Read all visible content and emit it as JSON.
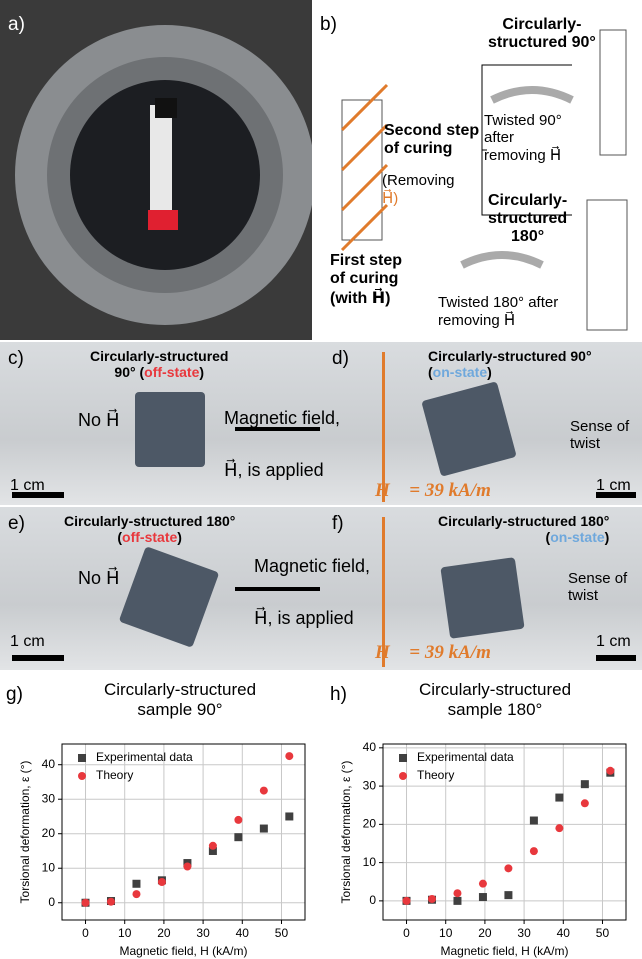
{
  "panels": {
    "a": {
      "label": "a)"
    },
    "b": {
      "label": "b)",
      "top_title": [
        "Circularly-",
        "structured 90°"
      ],
      "bottom_title": [
        "Circularly-",
        "structured",
        "180°"
      ],
      "second_step": [
        "Second step",
        "of curing"
      ],
      "removing": [
        "(Removing",
        "H⃗)"
      ],
      "first_step": [
        "First step",
        "of curing",
        "(with H⃗)"
      ],
      "twist_90": [
        "Twisted 90°",
        "after",
        "removing H⃗"
      ],
      "twist_180": [
        "Twisted 180° after",
        "removing H⃗"
      ]
    },
    "c": {
      "label": "c)",
      "title": "Circularly-structured",
      "state_pre": "90° (",
      "state": "off-state",
      "state_post": ")",
      "no_field": "No H⃗",
      "arrow_1": "Magnetic field,",
      "arrow_2": "H⃗,  is applied",
      "scale": "1 cm"
    },
    "d": {
      "label": "d)",
      "title": "Circularly-structured 90°",
      "state_pre": "(",
      "state": "on-state",
      "state_post": ")",
      "twist": [
        "Sense of",
        "twist"
      ],
      "field": "H⃗ = 39 kA/m",
      "scale": "1 cm"
    },
    "e": {
      "label": "e)",
      "title": "Circularly-structured 180°",
      "state_pre": "(",
      "state": "off-state",
      "state_post": ")",
      "no_field": "No H⃗",
      "arrow_1": "Magnetic field,",
      "arrow_2": "H⃗,  is applied",
      "scale": "1 cm"
    },
    "f": {
      "label": "f)",
      "title": "Circularly-structured 180°",
      "state_pre": "(",
      "state": "on-state",
      "state_post": ")",
      "twist": [
        "Sense of",
        "twist"
      ],
      "field": "H⃗ = 39 kA/m",
      "scale": "1 cm"
    },
    "g": {
      "label": "g)"
    },
    "h": {
      "label": "h)"
    }
  },
  "chart_data": [
    {
      "type": "scatter",
      "title": "Circularly-structured sample 90°",
      "x_label": "Magnetic field, H (kA/m)",
      "y_label": "Torsional deformation, ε (°)",
      "x": [
        0,
        6.5,
        13,
        19.5,
        26,
        32.5,
        39,
        45.5,
        52
      ],
      "series": [
        {
          "name": "Experimental data",
          "color": "#404040",
          "marker": "square",
          "values": [
            0,
            0.5,
            5.5,
            6.5,
            11.5,
            15,
            19,
            21.5,
            25
          ]
        },
        {
          "name": "Theory",
          "color": "#e8383d",
          "marker": "circle",
          "values": [
            0,
            0.3,
            2.5,
            6,
            10.5,
            16.5,
            24,
            32.5,
            42.5
          ]
        }
      ],
      "xlim": [
        -6,
        56
      ],
      "ylim": [
        -5,
        46
      ],
      "xticks": [
        0,
        10,
        20,
        30,
        40,
        50
      ],
      "yticks": [
        0,
        10,
        20,
        30,
        40
      ],
      "grid": true,
      "legend": "upper left"
    },
    {
      "type": "scatter",
      "title": "Circularly-structured sample 180°",
      "x_label": "Magnetic field, H (kA/m)",
      "y_label": "Torsional deformation, ε (°)",
      "x": [
        0,
        6.5,
        13,
        19.5,
        26,
        32.5,
        39,
        45.5,
        52
      ],
      "series": [
        {
          "name": "Experimental data",
          "color": "#404040",
          "marker": "square",
          "values": [
            0,
            0.3,
            0,
            1,
            1.5,
            21,
            27,
            30.5,
            33.5
          ]
        },
        {
          "name": "Theory",
          "color": "#e8383d",
          "marker": "circle",
          "values": [
            0,
            0.5,
            2,
            4.5,
            8.5,
            13,
            19,
            25.5,
            34
          ]
        }
      ],
      "xlim": [
        -6,
        56
      ],
      "ylim": [
        -5,
        41
      ],
      "xticks": [
        0,
        10,
        20,
        30,
        40,
        50
      ],
      "yticks": [
        0,
        10,
        20,
        30,
        40
      ],
      "grid": true,
      "legend": "upper left"
    }
  ]
}
